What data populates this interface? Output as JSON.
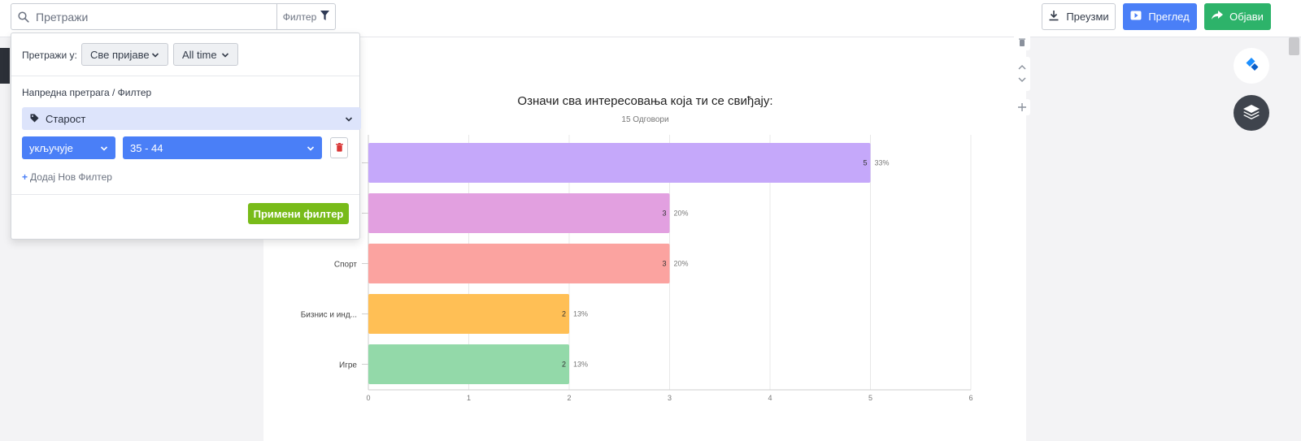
{
  "search": {
    "placeholder": "Претражи",
    "filter_label": "Филтер"
  },
  "toolbar": {
    "download_label": "Преузми",
    "preview_label": "Преглед",
    "publish_label": "Објави"
  },
  "filter_panel": {
    "search_in_label": "Претражи у:",
    "scope_value": "Све пријаве",
    "time_value": "All time",
    "advanced_label": "Напредна претрага / Филтер",
    "field_value": "Старост",
    "operator_value": "укључује",
    "range_value": "35 - 44",
    "add_filter_label": "Додај Нов Филтер",
    "apply_label": "Примени филтер"
  },
  "question": {
    "title": "Означи сва интересовања која ти се свиђају:",
    "responses": "15 Одговори"
  },
  "colors": {
    "accent": "#4a7ff7",
    "publish": "#2db36a",
    "apply": "#78bb19"
  },
  "chart_data": {
    "type": "bar",
    "orientation": "horizontal",
    "categories": [
      "",
      "",
      "Спорт",
      "Бизнис и инд...",
      "Игре"
    ],
    "values": [
      5,
      3,
      3,
      2,
      2
    ],
    "percent_labels": [
      "33%",
      "20%",
      "20%",
      "13%",
      "13%"
    ],
    "bar_colors": [
      "#c5a8fa",
      "#e2a0e0",
      "#fba3a0",
      "#ffbf55",
      "#93d9a9"
    ],
    "xlim": [
      0,
      6
    ],
    "x_ticks": [
      0,
      1,
      2,
      3,
      4,
      5,
      6
    ],
    "grid": true
  }
}
